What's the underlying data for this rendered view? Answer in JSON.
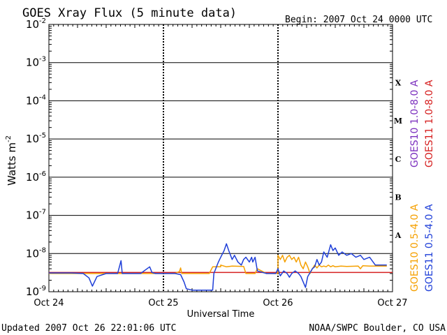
{
  "header": {
    "title": "GOES Xray Flux (5 minute data)",
    "begin": "Begin:  2007 Oct 24 0000 UTC"
  },
  "footer": {
    "updated": "Updated 2007 Oct 26 22:01:06 UTC",
    "credit": "NOAA/SWPC Boulder, CO USA"
  },
  "colors": {
    "goes10_long": "#7b2fbe",
    "goes11_long": "#d62020",
    "goes10_short": "#f5a000",
    "goes11_short": "#1f3fd8",
    "grid": "#000000"
  },
  "chart_data": {
    "type": "line",
    "title": "GOES Xray Flux (5 minute data)",
    "xlabel": "Universal Time",
    "ylabel_main": "Watts m",
    "ylabel_exp": "-2",
    "y_scale": "log",
    "ylim": [
      1e-09,
      0.01
    ],
    "xlim": [
      0,
      3
    ],
    "x_ticks": [
      "Oct 24",
      "Oct 25",
      "Oct 26",
      "Oct 27"
    ],
    "y_ticks": [
      {
        "base": "10",
        "exp": "-9",
        "value": 1e-09
      },
      {
        "base": "10",
        "exp": "-8",
        "value": 1e-08
      },
      {
        "base": "10",
        "exp": "-7",
        "value": 1e-07
      },
      {
        "base": "10",
        "exp": "-6",
        "value": 1e-06
      },
      {
        "base": "10",
        "exp": "-5",
        "value": 1e-05
      },
      {
        "base": "10",
        "exp": "-4",
        "value": 0.0001
      },
      {
        "base": "10",
        "exp": "-3",
        "value": 0.001
      },
      {
        "base": "10",
        "exp": "-2",
        "value": 0.01
      }
    ],
    "flare_classes": [
      {
        "label": "A",
        "value": 3e-08
      },
      {
        "label": "B",
        "value": 3e-07
      },
      {
        "label": "C",
        "value": 3e-06
      },
      {
        "label": "M",
        "value": 3e-05
      },
      {
        "label": "X",
        "value": 0.0003
      }
    ],
    "legend": [
      {
        "text": "GOES10 1.0-8.0 A",
        "color": "#7b2fbe"
      },
      {
        "text": "GOES11 1.0-8.0 A",
        "color": "#d62020"
      },
      {
        "text": "GOES10 0.5-4.0 A",
        "color": "#f5a000"
      },
      {
        "text": "GOES11 0.5-4.0 A",
        "color": "#1f3fd8"
      }
    ],
    "series": [
      {
        "name": "GOES11 1.0-8.0 A",
        "color": "#d62020",
        "x": [
          0,
          3
        ],
        "y": [
          3.2e-09,
          3.2e-09
        ]
      },
      {
        "name": "GOES10 0.5-4.0 A",
        "color": "#f5a000",
        "x": [
          0.0,
          1.0,
          1.1,
          1.14,
          1.15,
          1.16,
          1.4,
          1.43,
          1.5,
          1.5,
          1.55,
          1.6,
          1.7,
          1.72,
          1.8,
          1.82,
          1.9,
          1.95,
          2.0,
          2.0,
          2.02,
          2.04,
          2.06,
          2.08,
          2.1,
          2.12,
          2.14,
          2.16,
          2.18,
          2.2,
          2.22,
          2.24,
          2.26,
          2.28,
          2.3,
          2.32,
          2.34,
          2.36,
          2.38,
          2.4,
          2.42,
          2.44,
          2.46,
          2.48,
          2.5,
          2.55,
          2.6,
          2.7,
          2.72,
          2.74,
          2.8,
          2.9,
          2.95
        ],
        "y": [
          3e-09,
          3e-09,
          3e-09,
          3.4e-09,
          4.2e-09,
          3e-09,
          3e-09,
          4.5e-09,
          4.5e-09,
          5e-09,
          4.5e-09,
          4.7e-09,
          4.6e-09,
          3e-09,
          3e-09,
          4e-09,
          3e-09,
          3e-09,
          3e-09,
          9e-09,
          7e-09,
          9e-09,
          6e-09,
          8e-09,
          9e-09,
          7e-09,
          8e-09,
          6e-09,
          8e-09,
          5e-09,
          4e-09,
          6e-09,
          4.5e-09,
          3e-09,
          4e-09,
          5e-09,
          4.2e-09,
          5e-09,
          4.5e-09,
          4.7e-09,
          4.5e-09,
          5e-09,
          4.5e-09,
          4.8e-09,
          4.5e-09,
          4.7e-09,
          4.6e-09,
          4.7e-09,
          4e-09,
          4.8e-09,
          4.7e-09,
          4.7e-09,
          4.7e-09
        ]
      },
      {
        "name": "GOES11 0.5-4.0 A",
        "color": "#1f3fd8",
        "x": [
          0.0,
          0.2,
          0.3,
          0.35,
          0.38,
          0.42,
          0.5,
          0.6,
          0.63,
          0.64,
          0.66,
          0.7,
          0.8,
          0.88,
          0.9,
          0.93,
          0.96,
          1.0,
          1.1,
          1.15,
          1.18,
          1.2,
          1.25,
          1.35,
          1.43,
          1.44,
          1.48,
          1.5,
          1.53,
          1.55,
          1.57,
          1.6,
          1.62,
          1.65,
          1.68,
          1.7,
          1.72,
          1.75,
          1.77,
          1.78,
          1.8,
          1.82,
          1.9,
          1.98,
          2.0,
          2.02,
          2.05,
          2.08,
          2.1,
          2.12,
          2.15,
          2.18,
          2.2,
          2.24,
          2.26,
          2.3,
          2.32,
          2.34,
          2.36,
          2.38,
          2.4,
          2.43,
          2.46,
          2.48,
          2.5,
          2.53,
          2.56,
          2.6,
          2.64,
          2.68,
          2.72,
          2.75,
          2.8,
          2.85,
          2.9,
          2.95
        ],
        "y": [
          3.1e-09,
          3.1e-09,
          3e-09,
          2.3e-09,
          1.4e-09,
          2.5e-09,
          3e-09,
          3e-09,
          6.5e-09,
          3e-09,
          3e-09,
          3e-09,
          3e-09,
          4.5e-09,
          3.2e-09,
          3e-09,
          3e-09,
          3e-09,
          3e-09,
          2.8e-09,
          1.8e-09,
          1.2e-09,
          1.1e-09,
          1.1e-09,
          1.1e-09,
          3e-09,
          6e-09,
          8e-09,
          1.2e-08,
          1.8e-08,
          1.2e-08,
          7e-09,
          9e-09,
          6e-09,
          5e-09,
          7e-09,
          8e-09,
          6e-09,
          8e-09,
          6e-09,
          8e-09,
          3.5e-09,
          3e-09,
          3e-09,
          4e-09,
          2.6e-09,
          3.5e-09,
          3e-09,
          2.4e-09,
          3e-09,
          3.5e-09,
          3e-09,
          2.5e-09,
          1.3e-09,
          2.5e-09,
          4e-09,
          4.5e-09,
          7e-09,
          5e-09,
          6e-09,
          1.1e-08,
          8e-09,
          1.7e-08,
          1.2e-08,
          1.4e-08,
          9e-09,
          1.1e-08,
          9e-09,
          1e-08,
          8e-09,
          9e-09,
          7e-09,
          8e-09,
          5e-09,
          5e-09,
          5e-09
        ]
      },
      {
        "name": "GOES10 1.0-8.0 A",
        "color": "#7b2fbe",
        "x": [],
        "y": []
      }
    ]
  }
}
